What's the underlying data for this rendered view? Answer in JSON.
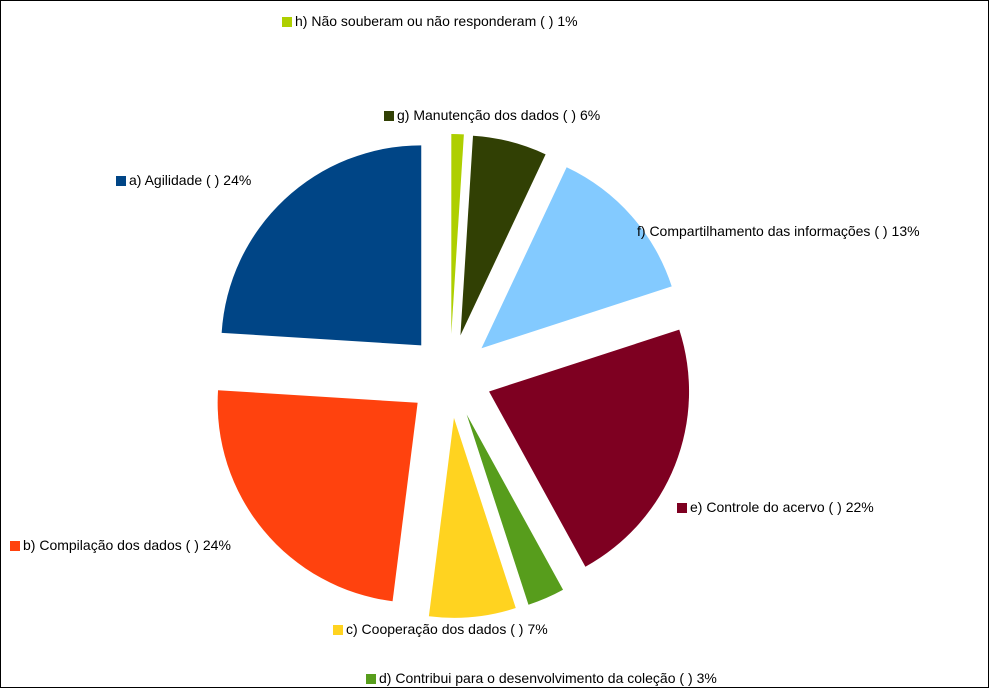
{
  "chart_data": {
    "type": "pie",
    "categories": [
      "a) Agilidade ( )",
      "b) Compilação dos dados ( )",
      "c) Cooperação dos dados ( )",
      "d) Contribui para o desenvolvimento da coleção ( )",
      "e) Controle do acervo ( )",
      "f) Compartilhamento das informações ( )",
      "g) Manutenção dos dados ( )",
      "h) Não souberam ou não responderam ( )"
    ],
    "values": [
      24,
      24,
      7,
      3,
      22,
      13,
      6,
      1
    ],
    "value_labels": [
      "24%",
      "24%",
      "7%",
      "3%",
      "22%",
      "13%",
      "6%",
      "1%"
    ],
    "colors": [
      "#004586",
      "#ff420e",
      "#ffd320",
      "#579d1c",
      "#7e0021",
      "#83caff",
      "#314004",
      "#aecf00"
    ],
    "exploded": true
  }
}
